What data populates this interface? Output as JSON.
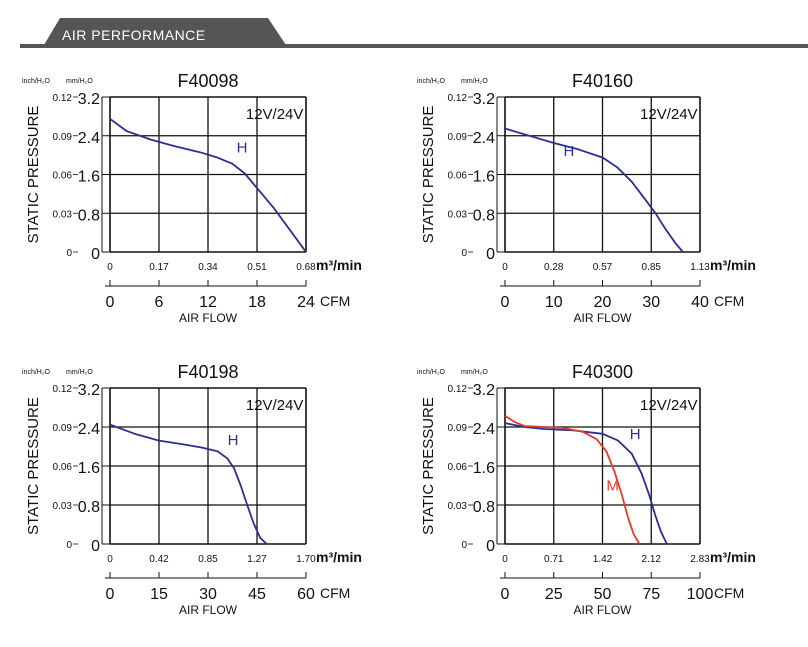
{
  "header": {
    "title": "AIR PERFORMANCE",
    "color": "#555555",
    "text_color": "#ffffff"
  },
  "styles": {
    "grid_color": "#111111",
    "h_color": "#2b2f8f",
    "m_color": "#e23a2f"
  },
  "chart_data": [
    {
      "type": "line",
      "title": "F40098",
      "rating": "12V/24V",
      "ylabel": "STATIC PRESSURE",
      "y_unit_inch": "inch/H₂O",
      "y_unit_mm": "mm/H₂O",
      "y_ticks_inch": [
        "0.12",
        "0.09",
        "0.06",
        "0.03",
        "0"
      ],
      "y_ticks_mm": [
        "3.2",
        "2.4",
        "1.6",
        "0.8",
        "0"
      ],
      "x_ticks_m3": [
        "0",
        "0.17",
        "0.34",
        "0.51",
        "0.68"
      ],
      "x_unit_m3": "m³/min",
      "x_ticks_cfm": [
        "0",
        "6",
        "12",
        "18",
        "24"
      ],
      "x_unit_cfm": "CFM",
      "xlabel": "AIR FLOW",
      "xlim": [
        0,
        24
      ],
      "ylim": [
        0,
        3.2
      ],
      "series": [
        {
          "name": "H",
          "color": "#2b2f8f",
          "x": [
            0,
            2,
            5,
            8,
            11,
            13,
            15,
            16.5,
            18,
            20,
            22,
            24
          ],
          "y": [
            2.75,
            2.5,
            2.32,
            2.18,
            2.06,
            1.96,
            1.82,
            1.62,
            1.32,
            0.92,
            0.46,
            0
          ]
        }
      ],
      "labels": [
        {
          "text": "H",
          "x": 15.5,
          "y": 2.05,
          "color": "#2b2f8f"
        }
      ]
    },
    {
      "type": "line",
      "title": "F40160",
      "rating": "12V/24V",
      "ylabel": "STATIC PRESSURE",
      "y_unit_inch": "inch/H₂O",
      "y_unit_mm": "mm/H₂O",
      "y_ticks_inch": [
        "0.12",
        "0.09",
        "0.06",
        "0.03",
        "0"
      ],
      "y_ticks_mm": [
        "3.2",
        "2.4",
        "1.6",
        "0.8",
        "0"
      ],
      "x_ticks_m3": [
        "0",
        "0.28",
        "0.57",
        "0.85",
        "1.13"
      ],
      "x_unit_m3": "m³/min",
      "x_ticks_cfm": [
        "0",
        "10",
        "20",
        "30",
        "40"
      ],
      "x_unit_cfm": "CFM",
      "xlabel": "AIR FLOW",
      "xlim": [
        0,
        40
      ],
      "ylim": [
        0,
        3.2
      ],
      "series": [
        {
          "name": "H",
          "color": "#2b2f8f",
          "x": [
            0,
            5,
            10,
            15,
            20,
            23,
            26,
            29,
            31,
            33,
            35,
            36.5
          ],
          "y": [
            2.55,
            2.4,
            2.25,
            2.12,
            1.95,
            1.75,
            1.45,
            1.05,
            0.78,
            0.46,
            0.18,
            0
          ]
        }
      ],
      "labels": [
        {
          "text": "H",
          "x": 12,
          "y": 1.98,
          "color": "#2b2f8f"
        }
      ]
    },
    {
      "type": "line",
      "title": "F40198",
      "rating": "12V/24V",
      "ylabel": "STATIC PRESSURE",
      "y_unit_inch": "inch/H₂O",
      "y_unit_mm": "mm/H₂O",
      "y_ticks_inch": [
        "0.12",
        "0.09",
        "0.06",
        "0.03",
        "0"
      ],
      "y_ticks_mm": [
        "3.2",
        "2.4",
        "1.6",
        "0.8",
        "0"
      ],
      "x_ticks_m3": [
        "0",
        "0.42",
        "0.85",
        "1.27",
        "1.70"
      ],
      "x_unit_m3": "m³/min",
      "x_ticks_cfm": [
        "0",
        "15",
        "30",
        "45",
        "60"
      ],
      "x_unit_cfm": "CFM",
      "xlabel": "AIR FLOW",
      "xlim": [
        0,
        60
      ],
      "ylim": [
        0,
        3.2
      ],
      "series": [
        {
          "name": "H",
          "color": "#2b2f8f",
          "x": [
            0,
            8,
            15,
            22,
            28,
            33,
            36,
            38,
            40,
            42,
            44,
            46,
            48
          ],
          "y": [
            2.45,
            2.25,
            2.12,
            2.05,
            1.98,
            1.9,
            1.75,
            1.55,
            1.2,
            0.8,
            0.42,
            0.12,
            0
          ]
        }
      ],
      "labels": [
        {
          "text": "H",
          "x": 36,
          "y": 2.03,
          "color": "#2b2f8f"
        }
      ]
    },
    {
      "type": "line",
      "title": "F40300",
      "rating": "12V/24V",
      "ylabel": "STATIC PRESSURE",
      "y_unit_inch": "inch/H₂O",
      "y_unit_mm": "mm/H₂O",
      "y_ticks_inch": [
        "0.12",
        "0.09",
        "0.06",
        "0.03",
        "0"
      ],
      "y_ticks_mm": [
        "3.2",
        "2.4",
        "1.6",
        "0.8",
        "0"
      ],
      "x_ticks_m3": [
        "0",
        "0.71",
        "1.42",
        "2.12",
        "2.83"
      ],
      "x_unit_m3": "m³/min",
      "x_ticks_cfm": [
        "0",
        "25",
        "50",
        "75",
        "100"
      ],
      "x_unit_cfm": "CFM",
      "xlabel": "AIR FLOW",
      "xlim": [
        0,
        100
      ],
      "ylim": [
        0,
        3.2
      ],
      "series": [
        {
          "name": "H",
          "color": "#2b2f8f",
          "x": [
            0,
            10,
            20,
            35,
            50,
            58,
            65,
            70,
            74,
            77,
            80,
            83
          ],
          "y": [
            2.48,
            2.4,
            2.36,
            2.33,
            2.26,
            2.12,
            1.85,
            1.45,
            1.0,
            0.6,
            0.25,
            0
          ]
        },
        {
          "name": "M",
          "color": "#e23a2f",
          "x": [
            0,
            5,
            10,
            20,
            30,
            40,
            47,
            52,
            56,
            60,
            63,
            66,
            69
          ],
          "y": [
            2.63,
            2.5,
            2.42,
            2.4,
            2.38,
            2.3,
            2.15,
            1.9,
            1.5,
            1.0,
            0.55,
            0.2,
            0
          ]
        }
      ],
      "labels": [
        {
          "text": "H",
          "x": 64,
          "y": 2.15,
          "color": "#2b2f8f"
        },
        {
          "text": "M",
          "x": 52,
          "y": 1.1,
          "color": "#e23a2f"
        }
      ]
    }
  ]
}
